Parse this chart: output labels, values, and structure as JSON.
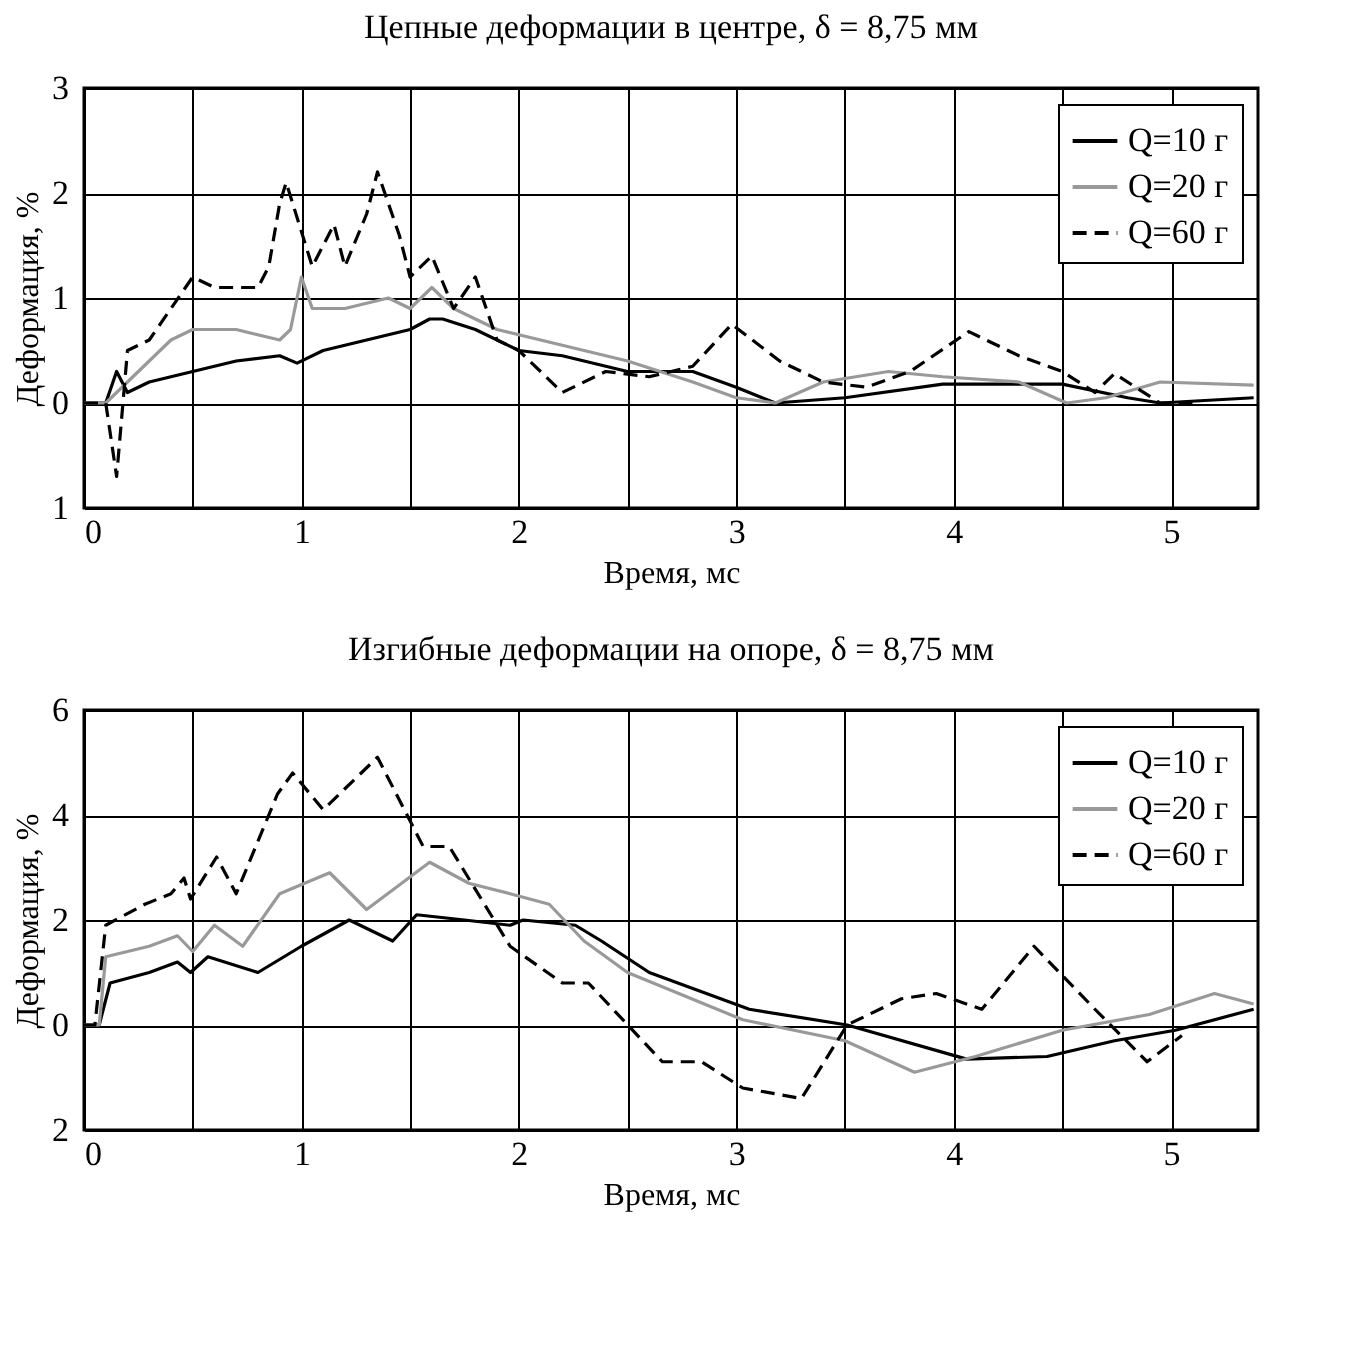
{
  "chart_data": [
    {
      "type": "line",
      "title": "Цепные деформации в центре, δ = 8,75 мм",
      "xlabel": "Время, мс",
      "ylabel": "Деформация, %",
      "xlim": [
        0,
        5.4
      ],
      "xticks": [
        0,
        {
          "value": 0.5,
          "label": null
        },
        1,
        {
          "value": 1.5,
          "label": null
        },
        2,
        {
          "value": 2.5,
          "label": null
        },
        3,
        {
          "value": 3.5,
          "label": null
        },
        4,
        {
          "value": 4.5,
          "label": null
        },
        5
      ],
      "ylim": [
        -1,
        3
      ],
      "yticks": [
        {
          "value": -1,
          "label": "1"
        },
        0,
        1,
        2,
        3
      ],
      "grid": true,
      "legend": "top right",
      "series": [
        {
          "name": "Q=10 г",
          "color": "#000000",
          "line_style": "solid",
          "x": [
            0,
            0.1,
            0.15,
            0.2,
            0.3,
            0.4,
            0.5,
            0.7,
            0.9,
            0.98,
            1.1,
            1.3,
            1.5,
            1.59,
            1.65,
            1.8,
            2.0,
            2.2,
            2.5,
            2.8,
            3.0,
            3.18,
            3.5,
            3.95,
            4.5,
            4.8,
            4.95,
            5.38
          ],
          "values": [
            0,
            0,
            0.3,
            0.1,
            0.2,
            0.25,
            0.3,
            0.4,
            0.45,
            0.38,
            0.5,
            0.6,
            0.7,
            0.8,
            0.8,
            0.7,
            0.5,
            0.45,
            0.3,
            0.3,
            0.15,
            0,
            0.05,
            0.18,
            0.18,
            0.05,
            0,
            0.05
          ]
        },
        {
          "name": "Q=20 г",
          "color": "#999999",
          "line_style": "solid",
          "x": [
            0,
            0.1,
            0.2,
            0.3,
            0.4,
            0.5,
            0.7,
            0.9,
            0.95,
            1.0,
            1.05,
            1.2,
            1.4,
            1.5,
            1.6,
            1.7,
            1.9,
            2.2,
            2.5,
            2.8,
            3.0,
            3.18,
            3.4,
            3.7,
            3.95,
            4.3,
            4.52,
            4.7,
            4.95,
            5.38
          ],
          "values": [
            0,
            0,
            0.2,
            0.4,
            0.6,
            0.7,
            0.7,
            0.6,
            0.7,
            1.2,
            0.9,
            0.9,
            1.0,
            0.9,
            1.1,
            0.9,
            0.7,
            0.55,
            0.4,
            0.2,
            0.05,
            0,
            0.2,
            0.3,
            0.25,
            0.2,
            0,
            0.05,
            0.2,
            0.17
          ]
        },
        {
          "name": "Q=60 г",
          "color": "#000000",
          "line_style": "dashed",
          "x": [
            0,
            0.1,
            0.15,
            0.2,
            0.3,
            0.4,
            0.5,
            0.6,
            0.8,
            0.85,
            0.9,
            0.93,
            1.05,
            1.15,
            1.2,
            1.3,
            1.35,
            1.45,
            1.5,
            1.6,
            1.7,
            1.8,
            1.9,
            2.0,
            2.2,
            2.4,
            2.6,
            2.8,
            2.98,
            3.2,
            3.4,
            3.6,
            3.8,
            4.07,
            4.3,
            4.5,
            4.65,
            4.74,
            4.95,
            5.1
          ],
          "values": [
            0,
            0,
            -0.7,
            0.5,
            0.6,
            0.9,
            1.2,
            1.1,
            1.1,
            1.3,
            1.9,
            2.1,
            1.3,
            1.7,
            1.3,
            1.8,
            2.2,
            1.6,
            1.2,
            1.4,
            0.9,
            1.2,
            0.6,
            0.5,
            0.1,
            0.3,
            0.25,
            0.35,
            0.75,
            0.4,
            0.2,
            0.15,
            0.3,
            0.68,
            0.45,
            0.3,
            0.1,
            0.28,
            0,
            0
          ]
        }
      ]
    },
    {
      "type": "line",
      "title": "Изгибные деформации на опоре, δ = 8,75 мм",
      "xlabel": "Время, мс",
      "ylabel": "Деформация, %",
      "xlim": [
        0,
        5.4
      ],
      "xticks": [
        0,
        {
          "value": 0.5,
          "label": null
        },
        1,
        {
          "value": 1.5,
          "label": null
        },
        2,
        {
          "value": 2.5,
          "label": null
        },
        3,
        {
          "value": 3.5,
          "label": null
        },
        4,
        {
          "value": 4.5,
          "label": null
        },
        5
      ],
      "ylim": [
        -2,
        6
      ],
      "yticks": [
        {
          "value": -2,
          "label": "2"
        },
        0,
        2,
        4,
        6
      ],
      "grid": true,
      "legend": "top right",
      "series": [
        {
          "name": "Q=10 г",
          "color": "#000000",
          "line_style": "solid",
          "x": [
            0,
            0.07,
            0.12,
            0.3,
            0.43,
            0.49,
            0.57,
            0.8,
            1.0,
            1.22,
            1.42,
            1.53,
            1.75,
            1.96,
            2.02,
            2.26,
            2.38,
            2.6,
            3.06,
            3.51,
            4.06,
            4.43,
            4.74,
            5.02,
            5.38
          ],
          "values": [
            0,
            0,
            0.8,
            1.0,
            1.2,
            1.0,
            1.3,
            1.0,
            1.5,
            2.0,
            1.6,
            2.1,
            2.0,
            1.9,
            2.0,
            1.9,
            1.6,
            1.0,
            0.3,
            0.0,
            -0.65,
            -0.6,
            -0.3,
            -0.1,
            0.3
          ]
        },
        {
          "name": "Q=20 г",
          "color": "#999999",
          "line_style": "solid",
          "x": [
            0,
            0.07,
            0.1,
            0.3,
            0.43,
            0.5,
            0.6,
            0.73,
            0.9,
            1.13,
            1.3,
            1.59,
            1.77,
            1.96,
            2.14,
            2.3,
            2.5,
            3.03,
            3.5,
            3.82,
            4.1,
            4.5,
            4.9,
            5.2,
            5.38
          ],
          "values": [
            0,
            0,
            1.3,
            1.5,
            1.7,
            1.4,
            1.9,
            1.5,
            2.5,
            2.9,
            2.2,
            3.1,
            2.7,
            2.5,
            2.3,
            1.6,
            1.0,
            0.1,
            -0.3,
            -0.9,
            -0.6,
            -0.1,
            0.2,
            0.6,
            0.4
          ]
        },
        {
          "name": "Q=60 г",
          "color": "#000000",
          "line_style": "dashed",
          "x": [
            0,
            0.05,
            0.1,
            0.28,
            0.4,
            0.46,
            0.49,
            0.61,
            0.7,
            0.89,
            0.96,
            1.1,
            1.35,
            1.56,
            1.68,
            1.96,
            2.2,
            2.32,
            2.66,
            2.84,
            3.03,
            3.3,
            3.51,
            3.76,
            3.92,
            4.13,
            4.37,
            4.65,
            4.89,
            5.05
          ],
          "values": [
            0,
            0,
            1.9,
            2.3,
            2.5,
            2.8,
            2.4,
            3.2,
            2.5,
            4.4,
            4.8,
            4.1,
            5.1,
            3.4,
            3.4,
            1.5,
            0.8,
            0.8,
            -0.7,
            -0.7,
            -1.2,
            -1.4,
            0.0,
            0.5,
            0.6,
            0.3,
            1.5,
            0.3,
            -0.7,
            -0.2
          ]
        }
      ]
    }
  ]
}
